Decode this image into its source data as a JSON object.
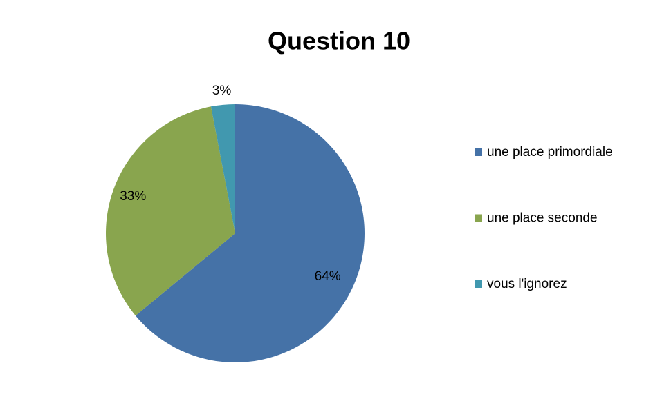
{
  "chart_data": {
    "type": "pie",
    "title": "Question 10",
    "categories": [
      "une place primordiale",
      "une place seconde",
      "vous l'ignorez"
    ],
    "values": [
      64,
      33,
      3
    ],
    "value_labels": [
      "64%",
      "33%",
      "3%"
    ],
    "colors": [
      "#4572a7",
      "#89a54e",
      "#4198af"
    ],
    "legend": "right"
  }
}
